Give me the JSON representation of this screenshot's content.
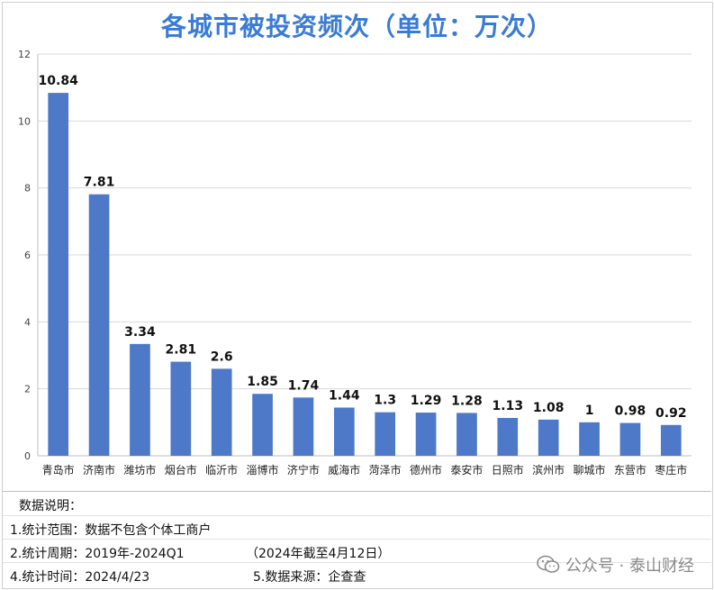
{
  "chart_data": {
    "type": "bar",
    "title": "各城市被投资频次（单位：万次）",
    "categories": [
      "青岛市",
      "济南市",
      "潍坊市",
      "烟台市",
      "临沂市",
      "淄博市",
      "济宁市",
      "威海市",
      "菏泽市",
      "德州市",
      "泰安市",
      "日照市",
      "滨州市",
      "聊城市",
      "东营市",
      "枣庄市"
    ],
    "values": [
      10.84,
      7.81,
      3.34,
      2.81,
      2.6,
      1.85,
      1.74,
      1.44,
      1.3,
      1.29,
      1.28,
      1.13,
      1.08,
      1,
      0.98,
      0.92
    ],
    "value_labels": [
      "10.84",
      "7.81",
      "3.34",
      "2.81",
      "2.6",
      "1.85",
      "1.74",
      "1.44",
      "1.3",
      "1.29",
      "1.28",
      "1.13",
      "1.08",
      "1",
      "0.98",
      "0.92"
    ],
    "ylim": [
      0,
      12
    ],
    "yticks": [
      0,
      2,
      4,
      6,
      8,
      10,
      12
    ],
    "xlabel": "",
    "ylabel": "",
    "grid": true,
    "bar_color": "#4e79c8"
  },
  "notes": {
    "heading": "数据说明：",
    "line1": "1.统计范围：数据不包含个体工商户",
    "line2_a": "2.统计周期：2019年-2024Q1",
    "line2_b": "（2024年截至4月12日）",
    "line3_a": "4.统计时间：2024/4/23",
    "line3_b": "5.数据来源：企查查"
  },
  "watermark": {
    "text": "公众号 · 泰山财经",
    "icon": "wechat-icon"
  },
  "colors": {
    "title": "#3a7bd5",
    "bar": "#4e79c8",
    "grid": "#d9d9d9"
  }
}
